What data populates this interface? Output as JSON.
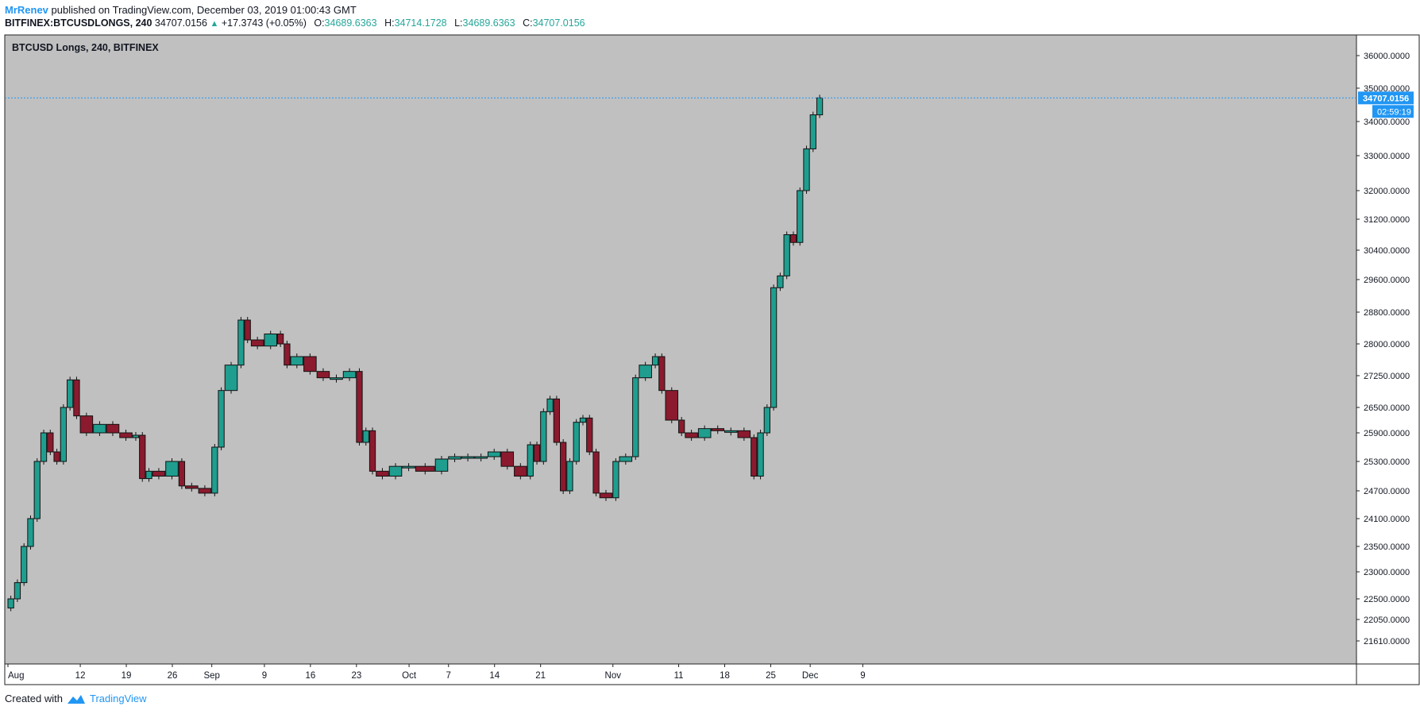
{
  "header": {
    "author": "MrRenev",
    "published_text": "published on TradingView.com, December 03, 2019 01:00:43 GMT"
  },
  "quote": {
    "symbol": "BITFINEX:BTCUSDLONGS, 240",
    "last": "34707.0156",
    "change": "+17.3743 (+0.05%)",
    "o_label": "O:",
    "o": "34689.6363",
    "h_label": "H:",
    "h": "34714.1728",
    "l_label": "L:",
    "l": "34689.6363",
    "c_label": "C:",
    "c": "34707.0156",
    "up_color": "#26a69a"
  },
  "chart_data": {
    "type": "candlestick",
    "title": "BTCUSD Longs, 240, BITFINEX",
    "background": "#c0c0c0",
    "up_color": "#1f9e8f",
    "down_color": "#8b1a2e",
    "last_price_label": "34707.0156",
    "countdown_label": "02:59:19",
    "last_price_color": "#2196f3",
    "y_ticks": [
      "21610.0000",
      "22050.0000",
      "22500.0000",
      "23000.0000",
      "23500.0000",
      "24100.0000",
      "24700.0000",
      "25300.0000",
      "25900.0000",
      "26500.0000",
      "27250.0000",
      "28000.0000",
      "28800.0000",
      "29600.0000",
      "30400.0000",
      "31200.0000",
      "32000.0000",
      "33000.0000",
      "34000.0000",
      "35000.0000",
      "36000.0000"
    ],
    "x_ticks": [
      "Aug",
      "12",
      "19",
      "26",
      "Sep",
      "9",
      "16",
      "23",
      "Oct",
      "7",
      "14",
      "21",
      "Nov",
      "11",
      "18",
      "25",
      "Dec",
      "9"
    ],
    "x_dates": [
      "2019-08-01",
      "2019-08-12",
      "2019-08-19",
      "2019-08-26",
      "2019-09-01",
      "2019-09-09",
      "2019-09-16",
      "2019-09-23",
      "2019-10-01",
      "2019-10-07",
      "2019-10-14",
      "2019-10-21",
      "2019-11-01",
      "2019-11-11",
      "2019-11-18",
      "2019-11-25",
      "2019-12-01",
      "2019-12-09"
    ],
    "series": [
      {
        "date": "2019-08-01",
        "close": 22300
      },
      {
        "date": "2019-08-02",
        "close": 22500
      },
      {
        "date": "2019-08-03",
        "close": 22800
      },
      {
        "date": "2019-08-04",
        "close": 23500
      },
      {
        "date": "2019-08-05",
        "close": 24100
      },
      {
        "date": "2019-08-06",
        "close": 25300
      },
      {
        "date": "2019-08-07",
        "close": 25900
      },
      {
        "date": "2019-08-08",
        "close": 25500
      },
      {
        "date": "2019-08-09",
        "close": 25300
      },
      {
        "date": "2019-08-10",
        "close": 26500
      },
      {
        "date": "2019-08-11",
        "close": 27150
      },
      {
        "date": "2019-08-12",
        "close": 26300
      },
      {
        "date": "2019-08-14",
        "close": 25900
      },
      {
        "date": "2019-08-16",
        "close": 26100
      },
      {
        "date": "2019-08-18",
        "close": 25900
      },
      {
        "date": "2019-08-20",
        "close": 25800
      },
      {
        "date": "2019-08-21",
        "close": 25850
      },
      {
        "date": "2019-08-22",
        "close": 24950
      },
      {
        "date": "2019-08-23",
        "close": 25100
      },
      {
        "date": "2019-08-25",
        "close": 25000
      },
      {
        "date": "2019-08-27",
        "close": 25300
      },
      {
        "date": "2019-08-28",
        "close": 24800
      },
      {
        "date": "2019-08-30",
        "close": 24750
      },
      {
        "date": "2019-09-01",
        "close": 24650
      },
      {
        "date": "2019-09-02",
        "close": 25600
      },
      {
        "date": "2019-09-03",
        "close": 26900
      },
      {
        "date": "2019-09-05",
        "close": 27500
      },
      {
        "date": "2019-09-06",
        "close": 28600
      },
      {
        "date": "2019-09-07",
        "close": 28100
      },
      {
        "date": "2019-09-09",
        "close": 27950
      },
      {
        "date": "2019-09-11",
        "close": 28250
      },
      {
        "date": "2019-09-12",
        "close": 28000
      },
      {
        "date": "2019-09-13",
        "close": 27500
      },
      {
        "date": "2019-09-15",
        "close": 27700
      },
      {
        "date": "2019-09-17",
        "close": 27350
      },
      {
        "date": "2019-09-19",
        "close": 27200
      },
      {
        "date": "2019-09-21",
        "close": 27200
      },
      {
        "date": "2019-09-23",
        "close": 27350
      },
      {
        "date": "2019-09-24",
        "close": 25700
      },
      {
        "date": "2019-09-25",
        "close": 25950
      },
      {
        "date": "2019-09-26",
        "close": 25100
      },
      {
        "date": "2019-09-28",
        "close": 25000
      },
      {
        "date": "2019-09-30",
        "close": 25200
      },
      {
        "date": "2019-10-02",
        "close": 25200
      },
      {
        "date": "2019-10-05",
        "close": 25100
      },
      {
        "date": "2019-10-07",
        "close": 25350
      },
      {
        "date": "2019-10-09",
        "close": 25400
      },
      {
        "date": "2019-10-11",
        "close": 25400
      },
      {
        "date": "2019-10-13",
        "close": 25400
      },
      {
        "date": "2019-10-15",
        "close": 25500
      },
      {
        "date": "2019-10-17",
        "close": 25200
      },
      {
        "date": "2019-10-19",
        "close": 25000
      },
      {
        "date": "2019-10-20",
        "close": 25650
      },
      {
        "date": "2019-10-21",
        "close": 25300
      },
      {
        "date": "2019-10-22",
        "close": 26400
      },
      {
        "date": "2019-10-23",
        "close": 26700
      },
      {
        "date": "2019-10-24",
        "close": 25700
      },
      {
        "date": "2019-10-25",
        "close": 24700
      },
      {
        "date": "2019-10-26",
        "close": 25300
      },
      {
        "date": "2019-10-27",
        "close": 26150
      },
      {
        "date": "2019-10-28",
        "close": 26250
      },
      {
        "date": "2019-10-29",
        "close": 25500
      },
      {
        "date": "2019-10-30",
        "close": 24650
      },
      {
        "date": "2019-11-01",
        "close": 24550
      },
      {
        "date": "2019-11-02",
        "close": 25300
      },
      {
        "date": "2019-11-04",
        "close": 25400
      },
      {
        "date": "2019-11-05",
        "close": 27200
      },
      {
        "date": "2019-11-07",
        "close": 27500
      },
      {
        "date": "2019-11-08",
        "close": 27700
      },
      {
        "date": "2019-11-09",
        "close": 26900
      },
      {
        "date": "2019-11-11",
        "close": 26200
      },
      {
        "date": "2019-11-12",
        "close": 25900
      },
      {
        "date": "2019-11-14",
        "close": 25800
      },
      {
        "date": "2019-11-16",
        "close": 26000
      },
      {
        "date": "2019-11-18",
        "close": 25950
      },
      {
        "date": "2019-11-20",
        "close": 25950
      },
      {
        "date": "2019-11-22",
        "close": 25800
      },
      {
        "date": "2019-11-23",
        "close": 25000
      },
      {
        "date": "2019-11-24",
        "close": 25900
      },
      {
        "date": "2019-11-25",
        "close": 26500
      },
      {
        "date": "2019-11-26",
        "close": 29400
      },
      {
        "date": "2019-11-27",
        "close": 29700
      },
      {
        "date": "2019-11-28",
        "close": 30800
      },
      {
        "date": "2019-11-29",
        "close": 30600
      },
      {
        "date": "2019-11-30",
        "close": 32000
      },
      {
        "date": "2019-12-01",
        "close": 33200
      },
      {
        "date": "2019-12-02",
        "close": 34200
      },
      {
        "date": "2019-12-03",
        "close": 34707
      }
    ]
  },
  "footer": {
    "created_text": "Created with",
    "brand": "TradingView",
    "brand_icon": "tradingview-cloud-icon"
  }
}
